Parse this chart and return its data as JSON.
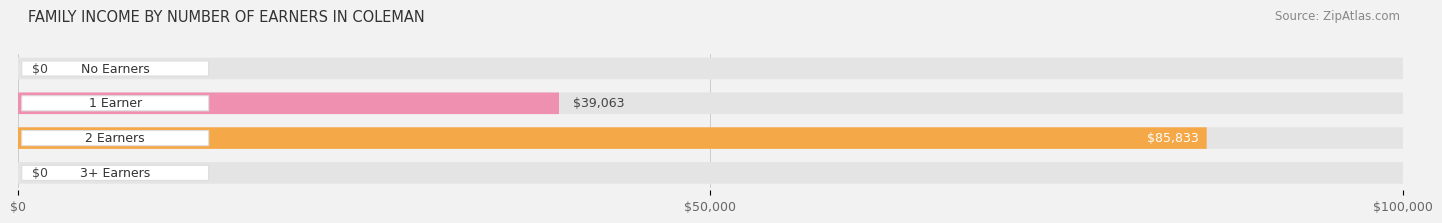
{
  "title": "FAMILY INCOME BY NUMBER OF EARNERS IN COLEMAN",
  "source": "Source: ZipAtlas.com",
  "categories": [
    "No Earners",
    "1 Earner",
    "2 Earners",
    "3+ Earners"
  ],
  "values": [
    0,
    39063,
    85833,
    0
  ],
  "bar_colors": [
    "#a8a8d8",
    "#f090b0",
    "#f5a848",
    "#f09090"
  ],
  "value_labels": [
    "$0",
    "$39,063",
    "$85,833",
    "$0"
  ],
  "value_inside": [
    false,
    false,
    true,
    false
  ],
  "xlim": [
    0,
    100000
  ],
  "xticks": [
    0,
    50000,
    100000
  ],
  "xtick_labels": [
    "$0",
    "$50,000",
    "$100,000"
  ],
  "bar_height": 0.62,
  "background_color": "#f2f2f2",
  "bar_bg_color": "#e4e4e4",
  "title_fontsize": 10.5,
  "source_fontsize": 8.5,
  "label_fontsize": 9,
  "value_fontsize": 9,
  "tick_fontsize": 9
}
